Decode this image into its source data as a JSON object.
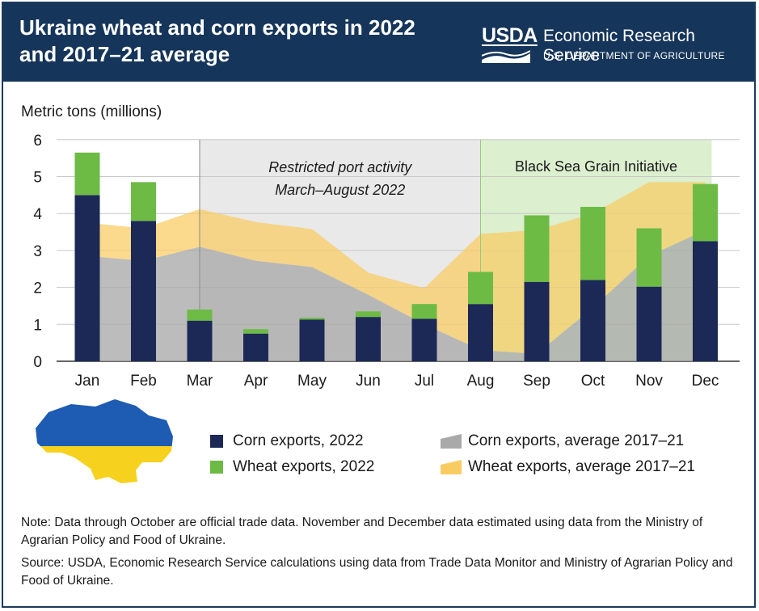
{
  "header": {
    "title": "Ukraine wheat and corn exports in 2022 and 2017–21 average",
    "logo_text": "USDA",
    "agency": "Economic Research Service",
    "department": "U.S. DEPARTMENT OF AGRICULTURE"
  },
  "colors": {
    "header_bg": "#16355a",
    "corn_2022": "#1c2957",
    "wheat_2022": "#6dbb45",
    "corn_avg": "#a9a9a9",
    "wheat_avg": "#f9cc63",
    "restricted_region": "#e9e9e9",
    "grain_initiative_region": "#dcefcf",
    "map_blue": "#1e5cb3",
    "map_yellow": "#f6d21e"
  },
  "chart_data": {
    "type": "bar",
    "ylabel": "Metric tons (millions)",
    "ylim": [
      0,
      6
    ],
    "yticks": [
      0,
      1,
      2,
      3,
      4,
      5,
      6
    ],
    "categories": [
      "Jan",
      "Feb",
      "Mar",
      "Apr",
      "May",
      "Jun",
      "Jul",
      "Aug",
      "Sep",
      "Oct",
      "Nov",
      "Dec"
    ],
    "stacked_bars": [
      {
        "name": "Corn exports, 2022",
        "values": [
          4.5,
          3.8,
          1.1,
          0.75,
          1.13,
          1.2,
          1.15,
          1.55,
          2.15,
          2.2,
          2.02,
          3.25
        ]
      },
      {
        "name": "Wheat exports, 2022",
        "values": [
          1.15,
          1.05,
          0.3,
          0.12,
          0.05,
          0.15,
          0.4,
          0.87,
          1.8,
          1.98,
          1.58,
          1.55
        ]
      }
    ],
    "stacked_areas": [
      {
        "name": "Corn exports, average 2017–21",
        "values": [
          2.85,
          2.72,
          3.1,
          2.72,
          2.55,
          1.8,
          1.0,
          0.3,
          0.2,
          1.45,
          2.85,
          3.55
        ]
      },
      {
        "name": "Wheat exports, average 2017–21",
        "values": [
          0.9,
          0.88,
          1.02,
          1.05,
          1.03,
          0.6,
          0.98,
          3.15,
          3.35,
          2.55,
          2.0,
          1.3
        ]
      }
    ],
    "regions": [
      {
        "label_line1": "Restricted port activity",
        "label_line2": "March–August 2022",
        "start": "Mar",
        "end": "Aug"
      },
      {
        "label": "Black Sea Grain Initiative",
        "start": "Aug",
        "end": "Dec"
      }
    ]
  },
  "legend": {
    "corn_2022": "Corn exports, 2022",
    "wheat_2022": "Wheat exports, 2022",
    "corn_avg": "Corn exports, average 2017–21",
    "wheat_avg": "Wheat exports, average 2017–21"
  },
  "notes": {
    "note": "Note: Data through October are official trade data. November and December data estimated using data from the Ministry of Agrarian Policy and Food of Ukraine.",
    "source": "Source: USDA, Economic Research Service calculations using data from Trade Data Monitor and Ministry of Agrarian Policy and Food of Ukraine."
  }
}
